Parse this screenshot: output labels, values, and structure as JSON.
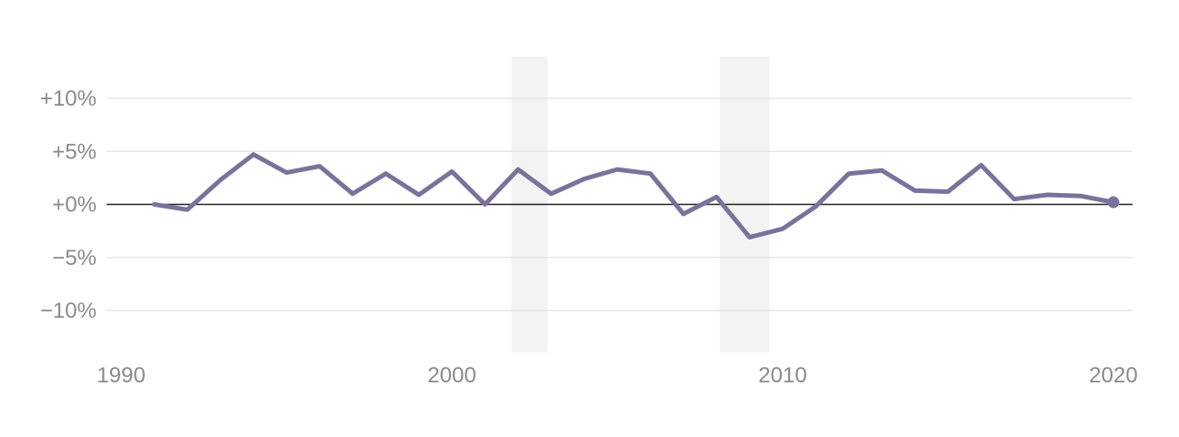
{
  "colors": {
    "series": "#7b729c",
    "grid": "#e6e6e6",
    "zero_line": "#222222",
    "shade": "#f3f3f3",
    "label": "#8a8a8a"
  },
  "chart_data": {
    "type": "line",
    "title": "",
    "xlabel": "",
    "ylabel": "",
    "xlim": [
      1990,
      2020
    ],
    "ylim": [
      -14,
      14
    ],
    "grid": true,
    "y_ticks": [
      {
        "value": 10,
        "label": "+10%"
      },
      {
        "value": 5,
        "label": "+5%"
      },
      {
        "value": 0,
        "label": "+0%"
      },
      {
        "value": -5,
        "label": "−5%"
      },
      {
        "value": -10,
        "label": "−10%"
      }
    ],
    "x_ticks": [
      {
        "value": 1990,
        "label": "1990"
      },
      {
        "value": 2000,
        "label": "2000"
      },
      {
        "value": 2010,
        "label": "2010"
      },
      {
        "value": 2020,
        "label": "2020"
      }
    ],
    "shaded_ranges": [
      {
        "start": 2001.8,
        "end": 2002.9
      },
      {
        "start": 2008.1,
        "end": 2009.6
      }
    ],
    "series": [
      {
        "x": [
          1991,
          1992,
          1993,
          1994,
          1995,
          1996,
          1997,
          1998,
          1999,
          2000,
          2001,
          2002,
          2003,
          2004,
          2005,
          2006,
          2007,
          2008,
          2009,
          2010,
          2011,
          2012,
          2013,
          2014,
          2015,
          2016,
          2017,
          2018,
          2019,
          2020
        ],
        "values": [
          0.0,
          -0.5,
          2.3,
          4.7,
          3.0,
          3.6,
          1.0,
          2.9,
          0.9,
          3.1,
          0.0,
          3.3,
          1.0,
          2.4,
          3.3,
          2.9,
          -0.9,
          0.7,
          -3.1,
          -2.3,
          -0.2,
          2.9,
          3.2,
          1.3,
          1.2,
          3.7,
          0.5,
          0.9,
          0.8,
          0.2
        ],
        "end_marker": true
      }
    ]
  }
}
